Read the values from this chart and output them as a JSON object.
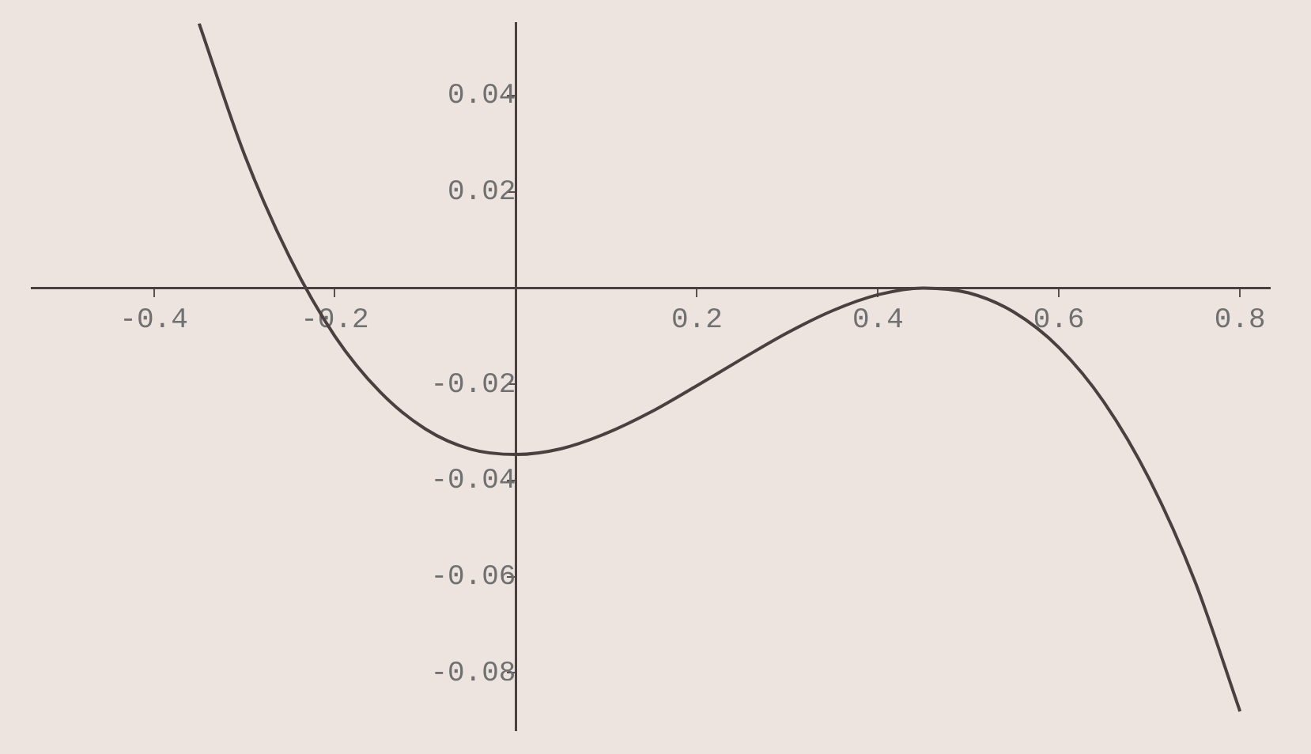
{
  "chart_data": {
    "type": "line",
    "x": [
      -0.35,
      -0.3,
      -0.25,
      -0.2,
      -0.15,
      -0.1,
      -0.05,
      0,
      0.05,
      0.1,
      0.15,
      0.2,
      0.25,
      0.3,
      0.35,
      0.4,
      0.45,
      0.5,
      0.55,
      0.6,
      0.65,
      0.7,
      0.75,
      0.8
    ],
    "series": [
      {
        "color": "#4a4040",
        "values": [
          0.055,
          0.0278,
          0.0064,
          -0.01,
          -0.0216,
          -0.0293,
          -0.0335,
          -0.0346,
          -0.0334,
          -0.0302,
          -0.0257,
          -0.0203,
          -0.0147,
          -0.0093,
          -0.0047,
          -0.0014,
          0,
          -0.001,
          -0.005,
          -0.0124,
          -0.0238,
          -0.0398,
          -0.0609,
          -0.088
        ]
      }
    ],
    "xlim": [
      -0.535,
      0.833
    ],
    "ylim": [
      -0.092,
      0.055
    ],
    "xticks": [
      -0.4,
      -0.2,
      0.2,
      0.4,
      0.6,
      0.8
    ],
    "yticks": [
      -0.08,
      -0.06,
      -0.04,
      -0.02,
      0.02,
      0.04
    ],
    "grid": false,
    "legend": false,
    "marker": "none",
    "line_style": "solid"
  }
}
